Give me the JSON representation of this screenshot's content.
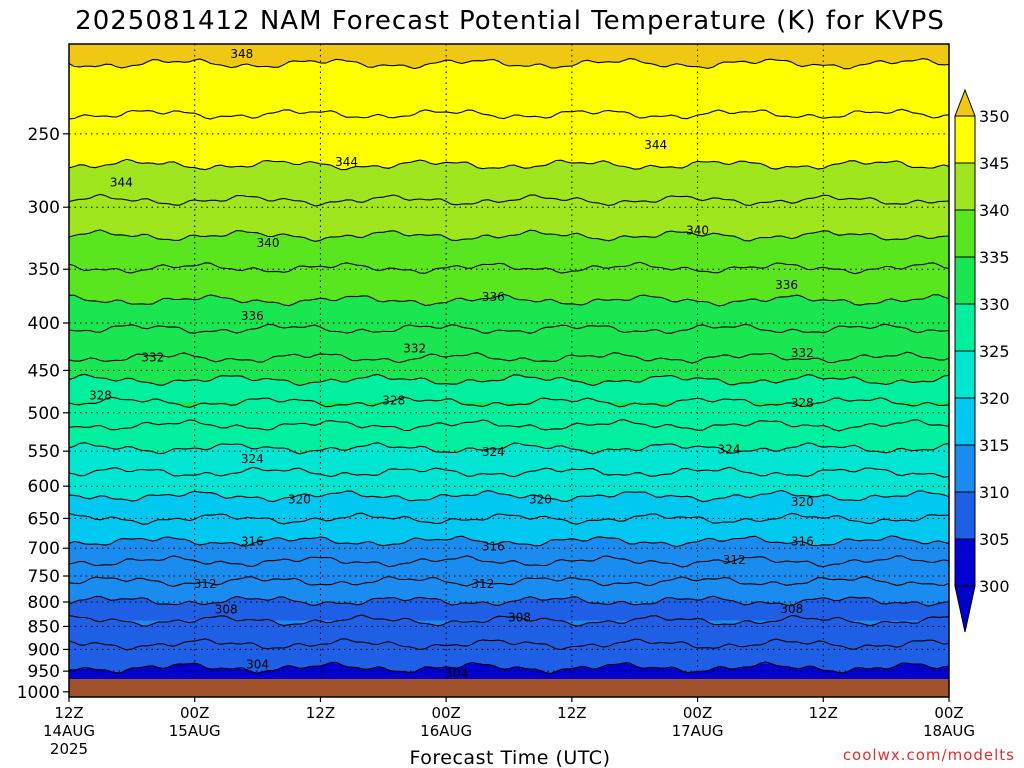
{
  "chart_data": {
    "type": "heatmap",
    "title": "2025081412 NAM Forecast Potential Temperature (K) for KVPS",
    "xlabel": "Forecast Time (UTC)",
    "ylabel": "",
    "x_ticks": [
      {
        "hours": 0,
        "label": "12Z",
        "date": "14AUG",
        "year": "2025"
      },
      {
        "hours": 12,
        "label": "00Z",
        "date": "15AUG",
        "year": ""
      },
      {
        "hours": 24,
        "label": "12Z",
        "date": "",
        "year": ""
      },
      {
        "hours": 36,
        "label": "00Z",
        "date": "16AUG",
        "year": ""
      },
      {
        "hours": 48,
        "label": "12Z",
        "date": "",
        "year": ""
      },
      {
        "hours": 60,
        "label": "00Z",
        "date": "17AUG",
        "year": ""
      },
      {
        "hours": 72,
        "label": "12Z",
        "date": "",
        "year": ""
      },
      {
        "hours": 84,
        "label": "00Z",
        "date": "18AUG",
        "year": ""
      }
    ],
    "xlim": [
      0,
      84
    ],
    "y_axis": "pressure (hPa), inverted, log scale",
    "y_ticks": [
      250,
      300,
      350,
      400,
      450,
      500,
      550,
      600,
      650,
      700,
      750,
      800,
      850,
      900,
      950,
      1000
    ],
    "ylim": [
      200,
      1013
    ],
    "grid": true,
    "colorbar": {
      "levels": [
        300,
        305,
        310,
        315,
        320,
        325,
        330,
        335,
        340,
        345,
        350
      ],
      "colors": [
        "#0000d0",
        "#1e5fe6",
        "#1a8cf0",
        "#00c8f0",
        "#00e6d2",
        "#00f0a0",
        "#19e650",
        "#5ae61e",
        "#a0e61e",
        "#ffff00"
      ],
      "extend": "both",
      "under_color": "#0000c8",
      "over_color": "#f0c814"
    },
    "isotherms": [
      {
        "theta": 348,
        "pressure": 210
      },
      {
        "theta": 344,
        "pressure": 270
      },
      {
        "theta": 340,
        "pressure": 322
      },
      {
        "theta": 336,
        "pressure": 378
      },
      {
        "theta": 332,
        "pressure": 436
      },
      {
        "theta": 328,
        "pressure": 487
      },
      {
        "theta": 324,
        "pressure": 546
      },
      {
        "theta": 320,
        "pressure": 615
      },
      {
        "theta": 316,
        "pressure": 688
      },
      {
        "theta": 312,
        "pressure": 760
      },
      {
        "theta": 308,
        "pressure": 838
      },
      {
        "theta": 304,
        "pressure": 942
      }
    ],
    "contour_labels": [
      {
        "value": "348",
        "hours": 16.5,
        "pressure": 205
      },
      {
        "value": "344",
        "hours": 5.0,
        "pressure": 282
      },
      {
        "value": "344",
        "hours": 26.5,
        "pressure": 268
      },
      {
        "value": "344",
        "hours": 56.0,
        "pressure": 257
      },
      {
        "value": "340",
        "hours": 19.0,
        "pressure": 328
      },
      {
        "value": "340",
        "hours": 60.0,
        "pressure": 318
      },
      {
        "value": "336",
        "hours": 17.5,
        "pressure": 393
      },
      {
        "value": "336",
        "hours": 40.5,
        "pressure": 375
      },
      {
        "value": "336",
        "hours": 68.5,
        "pressure": 364
      },
      {
        "value": "332",
        "hours": 8.0,
        "pressure": 436
      },
      {
        "value": "332",
        "hours": 33.0,
        "pressure": 426
      },
      {
        "value": "332",
        "hours": 70.0,
        "pressure": 431
      },
      {
        "value": "328",
        "hours": 3.0,
        "pressure": 479
      },
      {
        "value": "328",
        "hours": 31.0,
        "pressure": 485
      },
      {
        "value": "328",
        "hours": 70.0,
        "pressure": 488
      },
      {
        "value": "324",
        "hours": 17.5,
        "pressure": 561
      },
      {
        "value": "324",
        "hours": 40.5,
        "pressure": 551
      },
      {
        "value": "324",
        "hours": 63.0,
        "pressure": 548
      },
      {
        "value": "320",
        "hours": 22.0,
        "pressure": 620
      },
      {
        "value": "320",
        "hours": 45.0,
        "pressure": 620
      },
      {
        "value": "320",
        "hours": 70.0,
        "pressure": 624
      },
      {
        "value": "316",
        "hours": 17.5,
        "pressure": 688
      },
      {
        "value": "316",
        "hours": 40.5,
        "pressure": 697
      },
      {
        "value": "316",
        "hours": 70.0,
        "pressure": 688
      },
      {
        "value": "312",
        "hours": 13.0,
        "pressure": 765
      },
      {
        "value": "312",
        "hours": 39.5,
        "pressure": 765
      },
      {
        "value": "312",
        "hours": 63.5,
        "pressure": 721
      },
      {
        "value": "308",
        "hours": 15.0,
        "pressure": 815
      },
      {
        "value": "308",
        "hours": 43.0,
        "pressure": 831
      },
      {
        "value": "308",
        "hours": 69.0,
        "pressure": 814
      },
      {
        "value": "304",
        "hours": 18.0,
        "pressure": 935
      },
      {
        "value": "304",
        "hours": 37.0,
        "pressure": 955
      }
    ],
    "ground_color": "#a0522d"
  },
  "credit": "coolwx.com/modelts"
}
